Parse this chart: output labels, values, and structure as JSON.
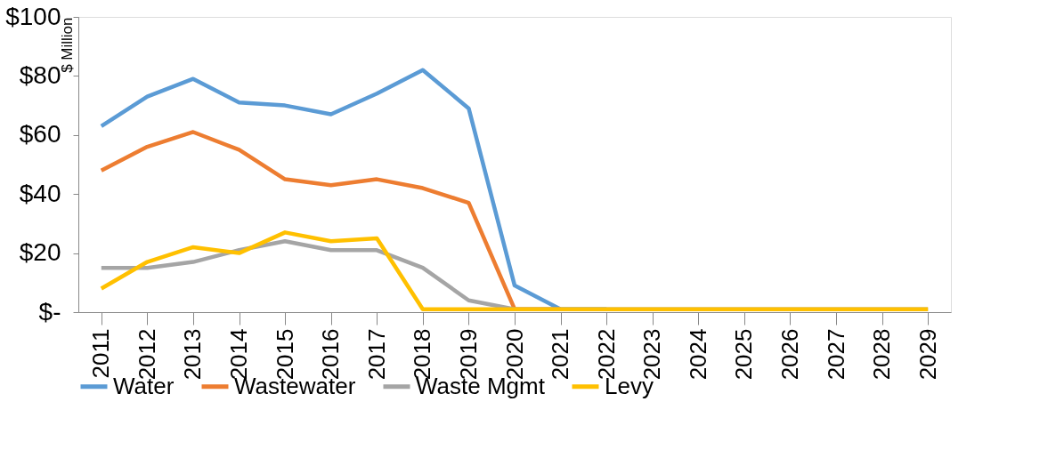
{
  "chart_data": {
    "type": "line",
    "ylabel": "$ Million",
    "categories": [
      "2011",
      "2012",
      "2013",
      "2014",
      "2015",
      "2016",
      "2017",
      "2018",
      "2019",
      "2020",
      "2021",
      "2022",
      "2023",
      "2024",
      "2025",
      "2026",
      "2027",
      "2028",
      "2029"
    ],
    "series": [
      {
        "name": "Water",
        "color": "#5b9bd5",
        "values": [
          63,
          73,
          79,
          71,
          70,
          67,
          74,
          82,
          69,
          9,
          1,
          1,
          null,
          null,
          null,
          null,
          null,
          null,
          null
        ]
      },
      {
        "name": "Wastewater",
        "color": "#ed7d31",
        "values": [
          48,
          56,
          61,
          55,
          45,
          43,
          45,
          42,
          37,
          1,
          1,
          null,
          null,
          null,
          null,
          null,
          null,
          null,
          null
        ]
      },
      {
        "name": "Waste Mgmt",
        "color": "#a5a5a5",
        "values": [
          15,
          15,
          17,
          21,
          24,
          21,
          21,
          15,
          4,
          1,
          1,
          1,
          1,
          1,
          1,
          1,
          1,
          1,
          1
        ]
      },
      {
        "name": "Levy",
        "color": "#ffc000",
        "values": [
          8,
          17,
          22,
          20,
          27,
          24,
          25,
          1,
          1,
          1,
          1,
          1,
          1,
          1,
          1,
          1,
          1,
          1,
          1
        ]
      }
    ],
    "ylim": [
      0,
      100
    ],
    "yticks": [
      {
        "value": 0,
        "label": "$-"
      },
      {
        "value": 20,
        "label": "$20"
      },
      {
        "value": 40,
        "label": "$40"
      },
      {
        "value": 60,
        "label": "$60"
      },
      {
        "value": 80,
        "label": "$80"
      },
      {
        "value": 100,
        "label": "$100"
      }
    ],
    "grid": false,
    "legend": "bottom",
    "marker": "none",
    "line_style": "solid"
  }
}
